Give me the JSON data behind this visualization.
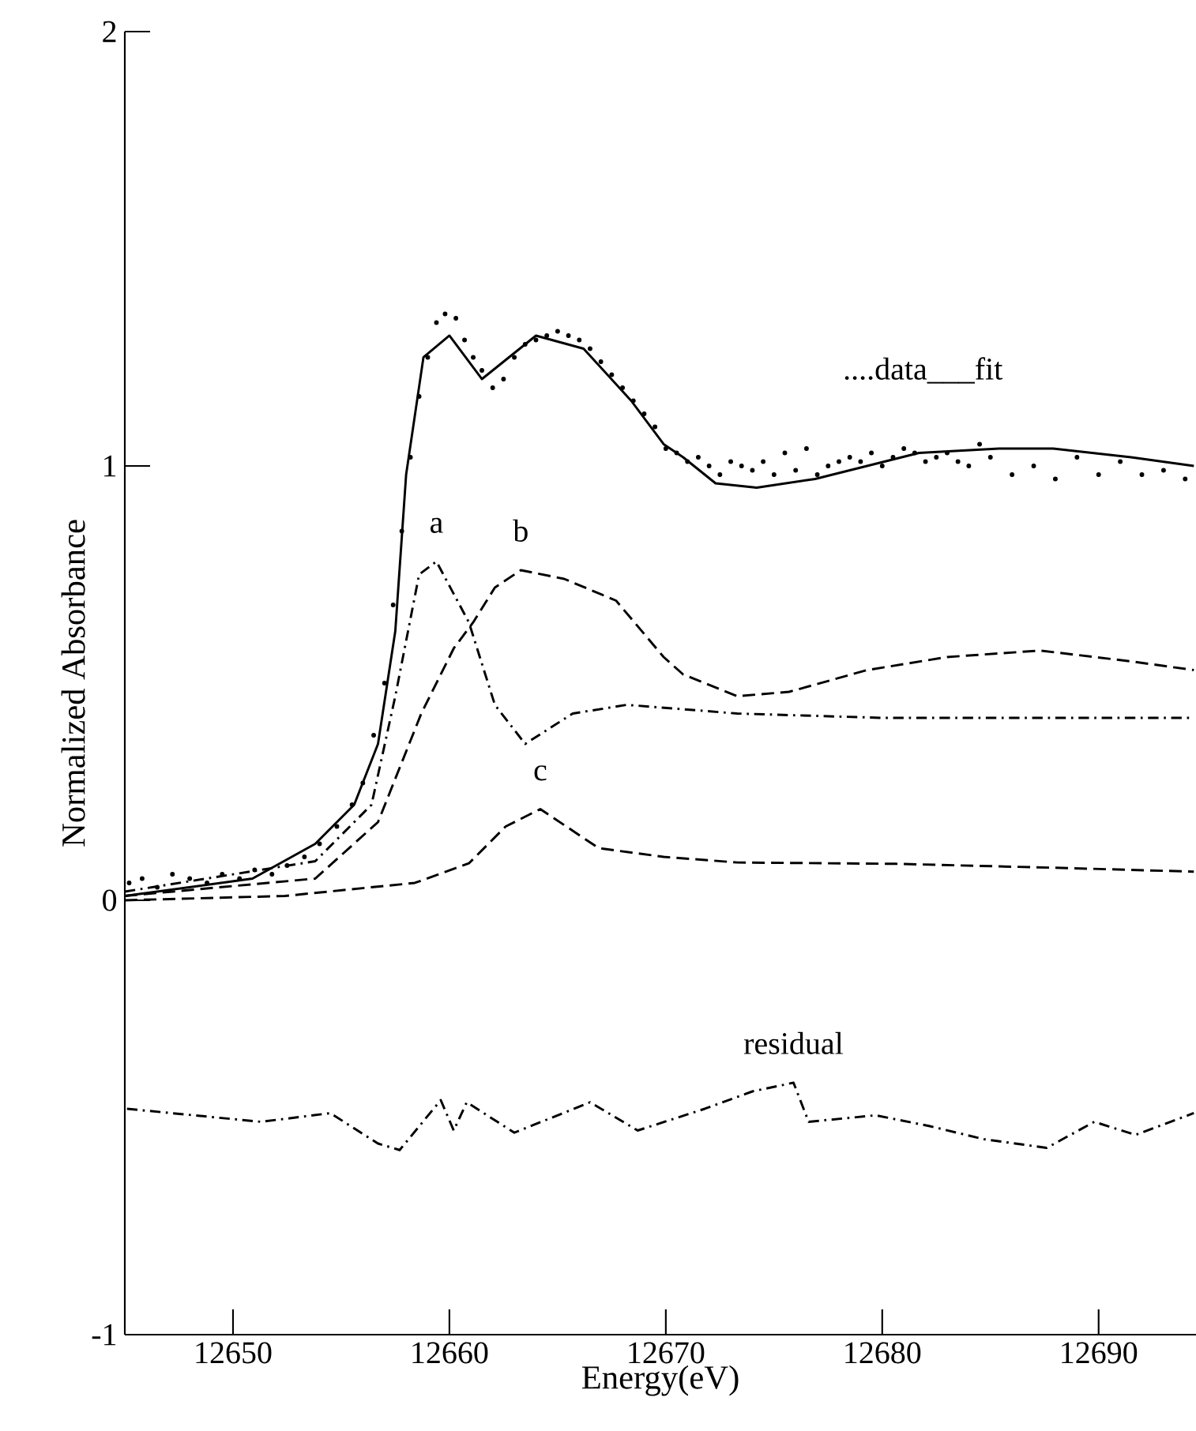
{
  "chart_data": {
    "type": "line",
    "xlabel": "Energy(eV)",
    "ylabel": "Normalized Absorbance",
    "xlim": [
      12645,
      12694.5
    ],
    "ylim": [
      -1,
      2
    ],
    "xticks": [
      12650,
      12660,
      12670,
      12680,
      12690
    ],
    "yticks": [
      -1,
      0,
      1,
      2
    ],
    "annotations": [
      "....data___fit"
    ],
    "series": [
      {
        "type": "scatter",
        "color": "#000000",
        "x": [
          12645.2,
          12645.8,
          12646.5,
          12647.2,
          12648,
          12648.8,
          12649.5,
          12650.3,
          12651,
          12651.8,
          12652.5,
          12653.3,
          12654,
          12654.8,
          12655.5,
          12656,
          12656.5,
          12657,
          12657.4,
          12657.8,
          12658.2,
          12658.6,
          12659,
          12659.4,
          12659.8,
          12660.3,
          12660.7,
          12661.1,
          12661.5,
          12662,
          12662.5,
          12663,
          12663.5,
          12664,
          12664.5,
          12665,
          12665.5,
          12666,
          12666.5,
          12667,
          12667.5,
          12668,
          12668.5,
          12669,
          12669.5,
          12670,
          12670.5,
          12671,
          12671.5,
          12672,
          12672.5,
          12673,
          12673.5,
          12674,
          12674.5,
          12675,
          12675.5,
          12676,
          12676.5,
          12677,
          12677.5,
          12678,
          12678.5,
          12679,
          12679.5,
          12680,
          12680.5,
          12681,
          12681.5,
          12682,
          12682.5,
          12683,
          12683.5,
          12684,
          12684.5,
          12685,
          12686,
          12687,
          12688,
          12689,
          12690,
          12691,
          12692,
          12693,
          12694
        ],
        "values": [
          0.04,
          0.05,
          0.03,
          0.06,
          0.05,
          0.04,
          0.06,
          0.05,
          0.07,
          0.06,
          0.08,
          0.1,
          0.13,
          0.17,
          0.22,
          0.27,
          0.38,
          0.5,
          0.68,
          0.85,
          1.02,
          1.16,
          1.25,
          1.33,
          1.35,
          1.34,
          1.29,
          1.25,
          1.22,
          1.18,
          1.2,
          1.25,
          1.28,
          1.29,
          1.3,
          1.31,
          1.3,
          1.29,
          1.27,
          1.24,
          1.21,
          1.18,
          1.15,
          1.12,
          1.09,
          1.04,
          1.03,
          1.01,
          1.02,
          1,
          0.98,
          1.01,
          1,
          0.99,
          1.01,
          0.98,
          1.03,
          0.99,
          1.04,
          0.98,
          1,
          1.01,
          1.02,
          1.01,
          1.03,
          1,
          1.02,
          1.04,
          1.03,
          1.01,
          1.02,
          1.03,
          1.01,
          1,
          1.05,
          1.02,
          0.98,
          1,
          0.97,
          1.02,
          0.98,
          1.01,
          0.98,
          0.99,
          0.97
        ]
      },
      {
        "line_style": "solid",
        "color": "#000000",
        "x": [
          12645,
          12650.9,
          12653.8,
          12655.6,
          12656.7,
          12657.5,
          12658,
          12658.8,
          12660,
          12661.5,
          12664,
          12666.2,
          12668.4,
          12669.9,
          12670.8,
          12672.3,
          12674.2,
          12676.9,
          12679.3,
          12681.7,
          12685.4,
          12687.9,
          12691.5,
          12694.4
        ],
        "values": [
          0.01,
          0.05,
          0.13,
          0.22,
          0.36,
          0.62,
          0.98,
          1.25,
          1.3,
          1.2,
          1.3,
          1.27,
          1.15,
          1.05,
          1.02,
          0.96,
          0.95,
          0.97,
          1,
          1.03,
          1.04,
          1.04,
          1.02,
          1
        ]
      },
      {
        "name": "a",
        "line_style": "dashdot",
        "color": "#000000",
        "x": [
          12645,
          12653.8,
          12656.4,
          12657.5,
          12658.6,
          12659.4,
          12660.9,
          12662.1,
          12663.5,
          12665.7,
          12668.2,
          12673.3,
          12680,
          12694.4
        ],
        "values": [
          0.02,
          0.09,
          0.22,
          0.47,
          0.75,
          0.78,
          0.64,
          0.45,
          0.36,
          0.43,
          0.45,
          0.43,
          0.42,
          0.42
        ]
      },
      {
        "name": "b",
        "line_style": "dashed",
        "color": "#000000",
        "x": [
          12645,
          12653.8,
          12656.7,
          12658.7,
          12660.2,
          12661.1,
          12662.1,
          12663.3,
          12665.3,
          12667.7,
          12669.9,
          12670.8,
          12673.3,
          12675.7,
          12679.3,
          12683,
          12687.3,
          12691.5,
          12694.4
        ],
        "values": [
          0.01,
          0.05,
          0.18,
          0.43,
          0.58,
          0.64,
          0.72,
          0.76,
          0.74,
          0.69,
          0.56,
          0.52,
          0.47,
          0.48,
          0.53,
          0.56,
          0.575,
          0.55,
          0.53
        ]
      },
      {
        "name": "c",
        "line_style": "dashed",
        "color": "#000000",
        "x": [
          12645,
          12652.4,
          12658.4,
          12660.9,
          12662.6,
          12664.2,
          12665.7,
          12666.9,
          12669.9,
          12673.3,
          12680.6,
          12687.9,
          12694.4
        ],
        "values": [
          0,
          0.01,
          0.04,
          0.085,
          0.17,
          0.21,
          0.16,
          0.12,
          0.1,
          0.087,
          0.084,
          0.075,
          0.066
        ]
      },
      {
        "name": "residual",
        "line_style": "dashdot",
        "color": "#000000",
        "x": [
          12645.1,
          12648.2,
          12651.3,
          12654.5,
          12656.7,
          12657.7,
          12659.6,
          12660.2,
          12660.8,
          12663,
          12666.5,
          12668.7,
          12671.8,
          12674,
          12675.9,
          12676.6,
          12679.7,
          12682.2,
          12684.7,
          12687.6,
          12689.8,
          12691.7,
          12694.4
        ],
        "values": [
          -0.48,
          -0.495,
          -0.51,
          -0.49,
          -0.56,
          -0.575,
          -0.46,
          -0.53,
          -0.465,
          -0.535,
          -0.465,
          -0.53,
          -0.48,
          -0.44,
          -0.42,
          -0.51,
          -0.495,
          -0.52,
          -0.55,
          -0.57,
          -0.51,
          -0.54,
          -0.49
        ]
      }
    ]
  }
}
